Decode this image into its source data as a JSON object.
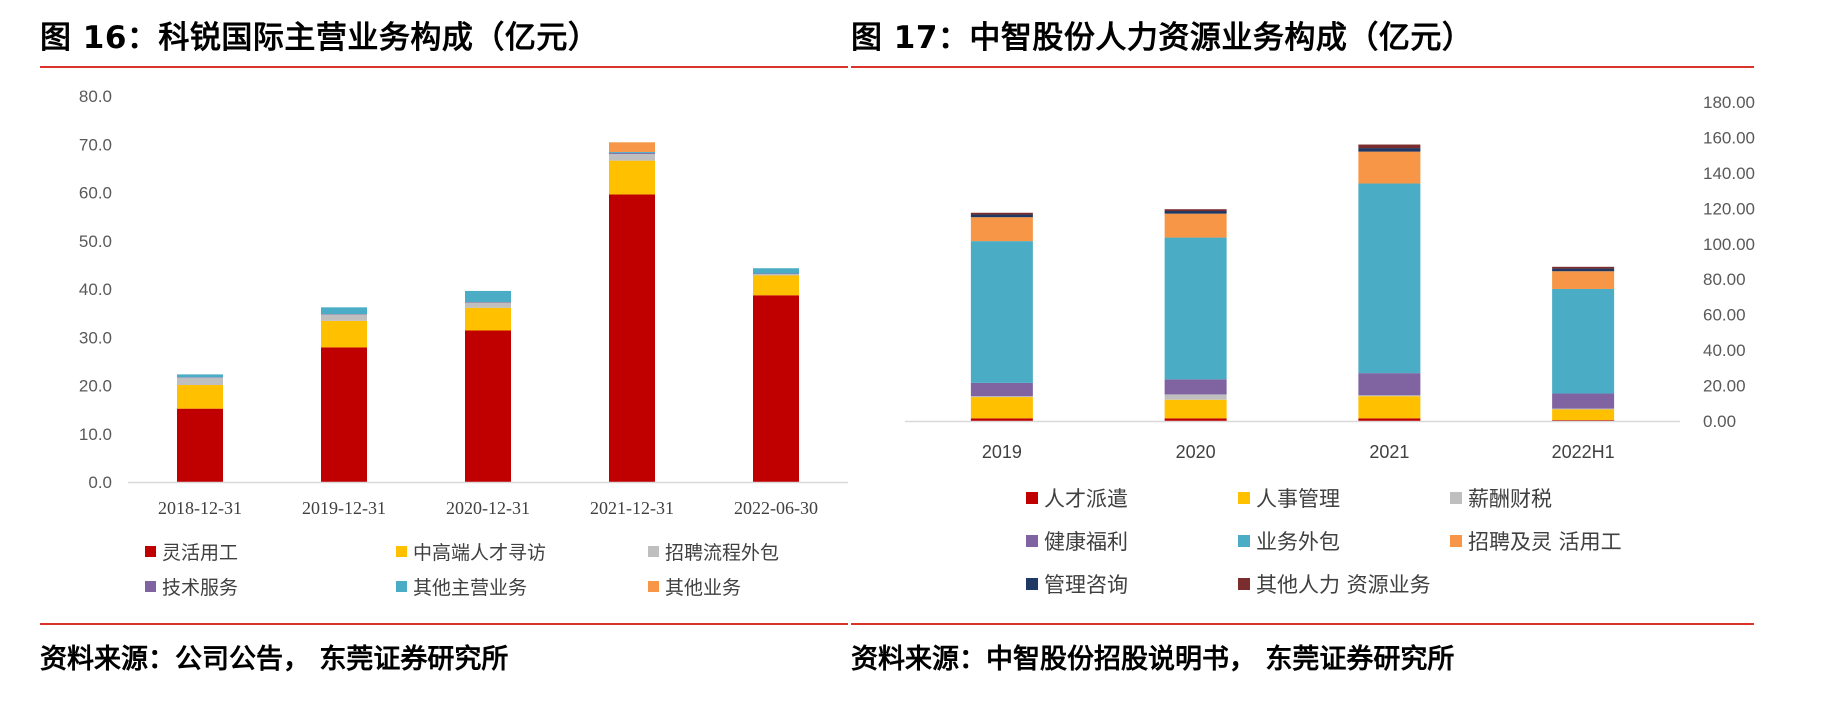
{
  "chart_data": [
    {
      "type": "bar",
      "stacked": true,
      "title": "图 16：科锐国际主营业务构成（亿元）",
      "source": "资料来源：公司公告， 东莞证券研究所",
      "categories": [
        "2018-12-31",
        "2019-12-31",
        "2020-12-31",
        "2021-12-31",
        "2022-06-30"
      ],
      "ylim": [
        0,
        80
      ],
      "yticks": [
        "0.0",
        "10.0",
        "20.0",
        "30.0",
        "40.0",
        "50.0",
        "60.0",
        "70.0",
        "80.0"
      ],
      "legend_position": "bottom",
      "grid": false,
      "series": [
        {
          "name": "灵活用工",
          "color": "#c00000",
          "values": [
            15.2,
            27.9,
            31.4,
            59.6,
            38.7
          ]
        },
        {
          "name": "中高端人才寻访",
          "color": "#ffc000",
          "values": [
            4.9,
            5.5,
            4.7,
            7.0,
            4.1
          ]
        },
        {
          "name": "招聘流程外包",
          "color": "#bfbfbf",
          "values": [
            1.5,
            1.3,
            1.1,
            1.4,
            0.3
          ]
        },
        {
          "name": "技术服务",
          "color": "#8064a2",
          "values": [
            0.1,
            0.1,
            0.1,
            0.2,
            0.1
          ]
        },
        {
          "name": "其他主营业务",
          "color": "#4bacc6",
          "values": [
            0.6,
            1.4,
            2.3,
            0.2,
            1.1
          ]
        },
        {
          "name": "其他业务",
          "color": "#f79646",
          "values": [
            0.0,
            0.0,
            0.0,
            2.0,
            0.0
          ]
        }
      ]
    },
    {
      "type": "bar",
      "stacked": true,
      "title": "图 17：中智股份人力资源业务构成（亿元）",
      "source": "资料来源：中智股份招股说明书， 东莞证券研究所",
      "categories": [
        "2019",
        "2020",
        "2021",
        "2022H1"
      ],
      "ylim": [
        0,
        180
      ],
      "yticks": [
        "0.00",
        "20.00",
        "40.00",
        "60.00",
        "80.00",
        "100.00",
        "120.00",
        "140.00",
        "160.00",
        "180.00"
      ],
      "y_axis_side": "right",
      "legend_position": "bottom",
      "grid": false,
      "series": [
        {
          "name": "人才派遣",
          "color": "#c00000",
          "values": [
            1.5,
            1.5,
            1.5,
            0.5
          ]
        },
        {
          "name": "人事管理",
          "color": "#ffc000",
          "values": [
            12.0,
            10.5,
            12.5,
            6.0
          ]
        },
        {
          "name": "薪酬财税",
          "color": "#bfbfbf",
          "values": [
            0.5,
            3.0,
            0.5,
            0.5
          ]
        },
        {
          "name": "健康福利",
          "color": "#8064a2",
          "values": [
            7.5,
            8.5,
            12.5,
            8.5
          ]
        },
        {
          "name": "业务外包",
          "color": "#4bacc6",
          "values": [
            80.0,
            80.0,
            107.0,
            59.0
          ]
        },
        {
          "name": "招聘及灵 活用工",
          "color": "#f79646",
          "values": [
            13.5,
            13.5,
            18.0,
            10.0
          ]
        },
        {
          "name": "管理咨询",
          "color": "#1f3864",
          "values": [
            1.5,
            1.5,
            2.0,
            1.5
          ]
        },
        {
          "name": "其他人力 资源业务",
          "color": "#7b2c2c",
          "values": [
            1.0,
            1.0,
            2.0,
            1.0
          ]
        }
      ]
    }
  ]
}
